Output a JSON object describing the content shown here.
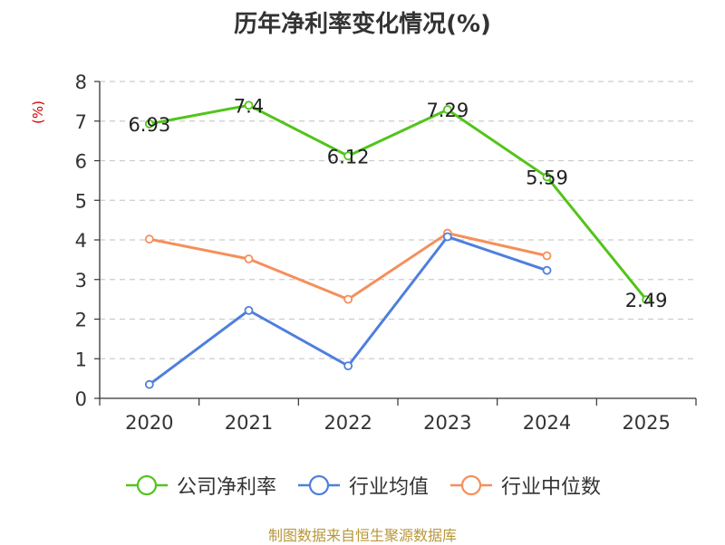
{
  "chart_data": {
    "type": "line",
    "title": "历年净利率变化情况(%)",
    "ylabel": "(%)",
    "categories": [
      "2020",
      "2021",
      "2022",
      "2023",
      "2024",
      "2025"
    ],
    "ylim": [
      0,
      8
    ],
    "yticks": [
      0,
      1,
      2,
      3,
      4,
      5,
      6,
      7,
      8
    ],
    "grid": true,
    "legend_position": "bottom",
    "series": [
      {
        "name": "公司净利率",
        "color": "#52c41a",
        "values": [
          6.93,
          7.4,
          6.12,
          7.29,
          5.59,
          2.49
        ],
        "labels": [
          "6.93",
          "7.4",
          "6.12",
          "7.29",
          "5.59",
          "2.49"
        ]
      },
      {
        "name": "行业均值",
        "color": "#4e7fdd",
        "values": [
          0.35,
          2.22,
          0.82,
          4.08,
          3.23,
          null
        ]
      },
      {
        "name": "行业中位数",
        "color": "#f58f5a",
        "values": [
          4.02,
          3.52,
          2.5,
          4.17,
          3.6,
          null
        ]
      }
    ]
  },
  "footer": {
    "source": "制图数据来自恒生聚源数据库"
  }
}
